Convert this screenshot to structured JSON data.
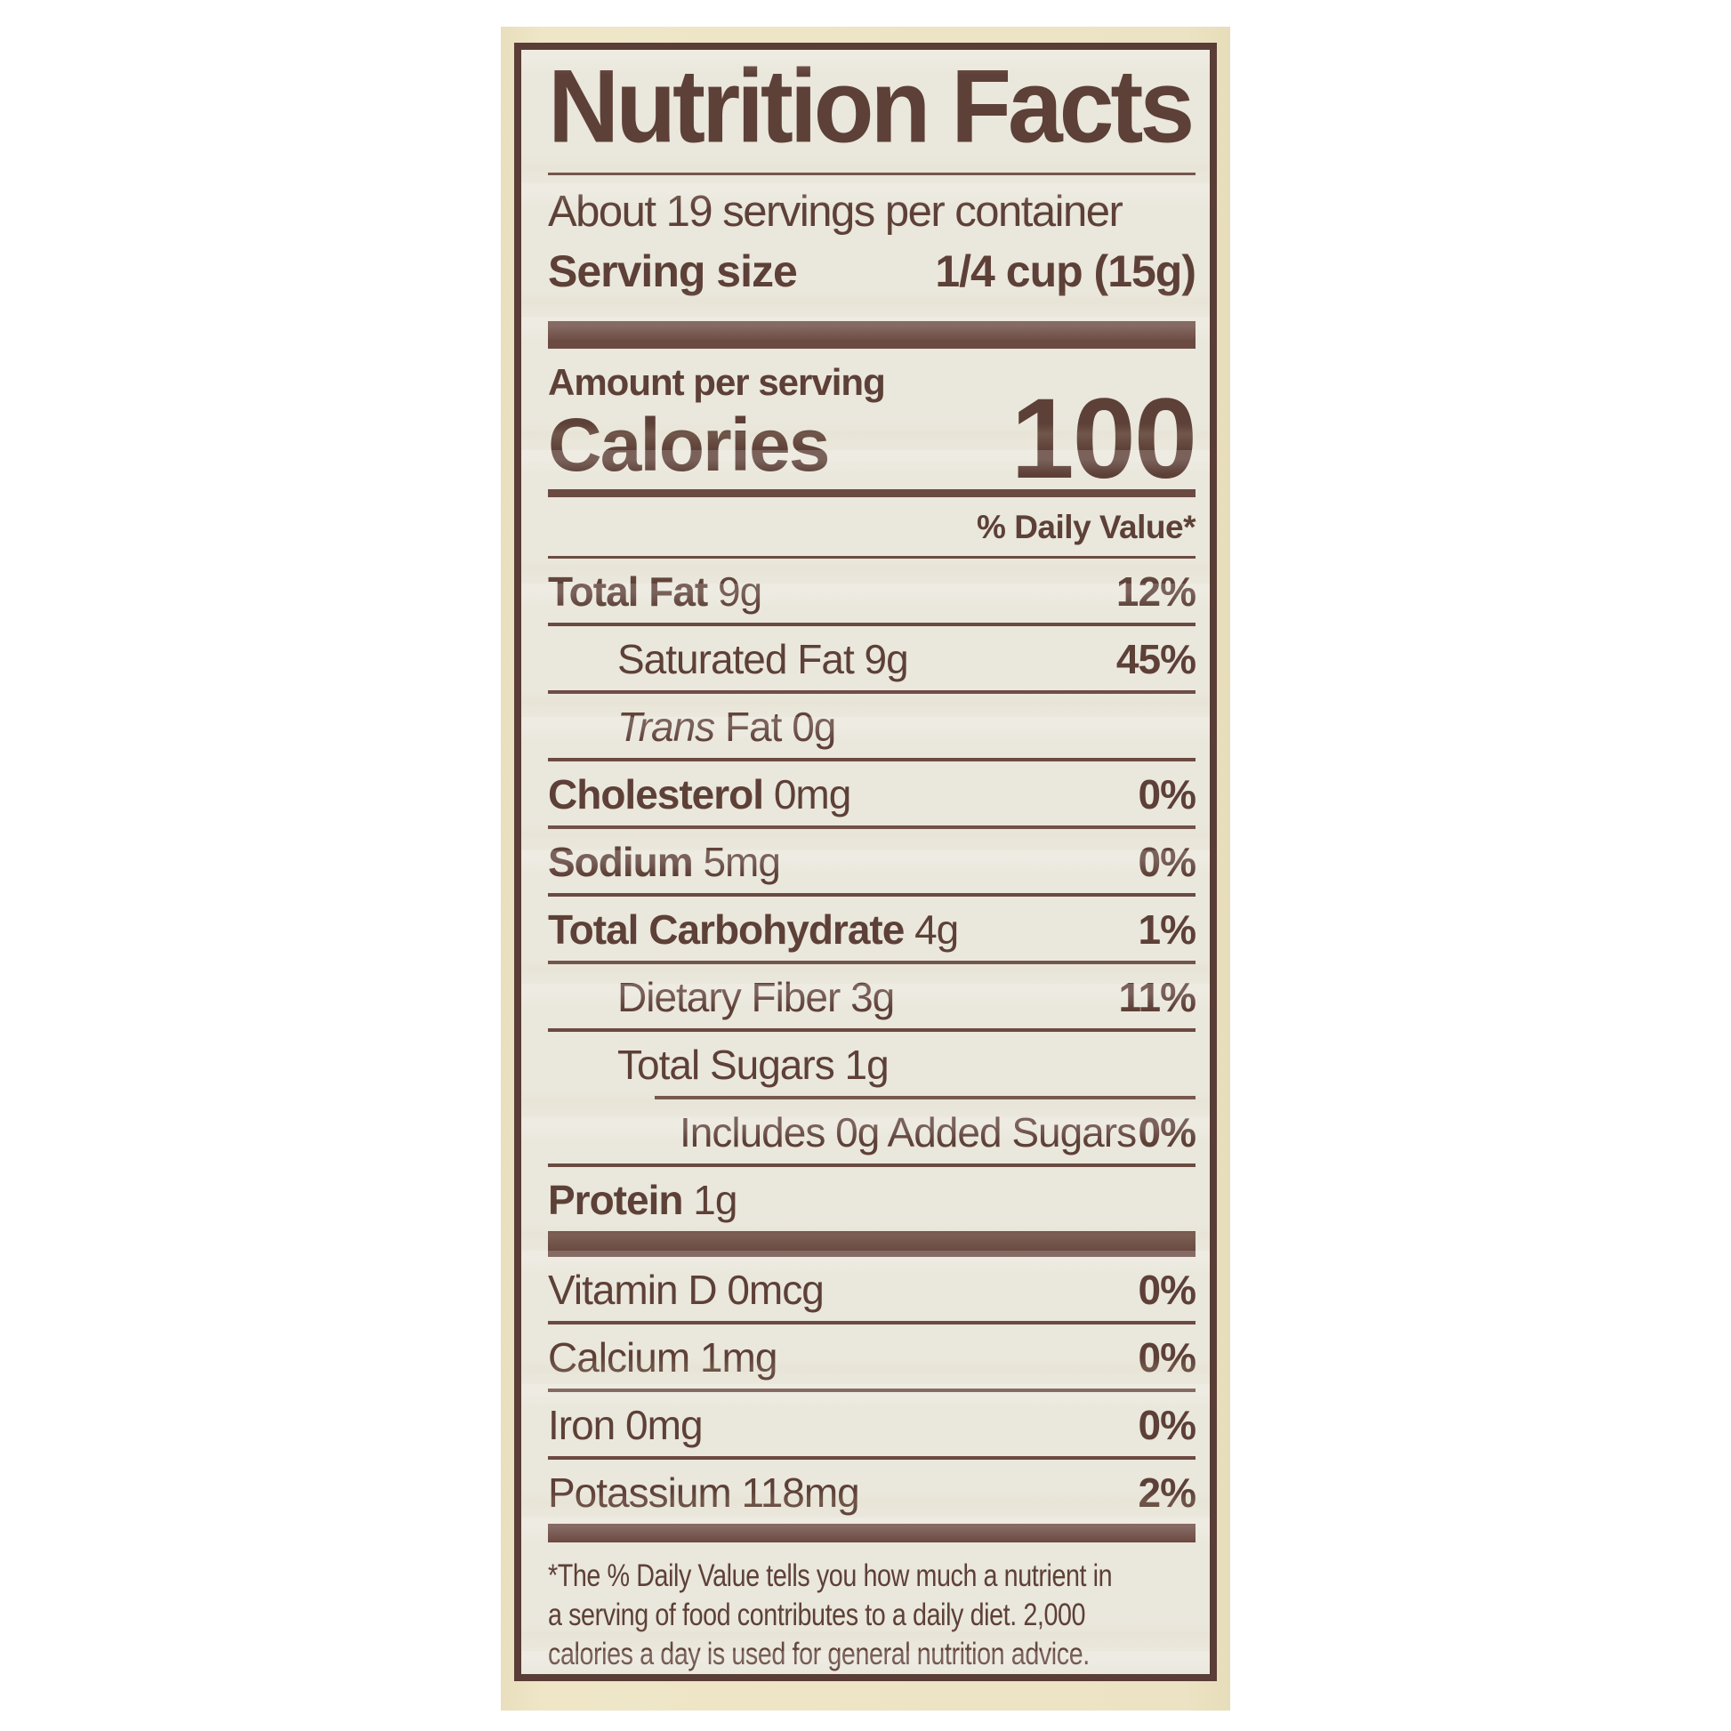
{
  "colors": {
    "page_background": "#ffffff",
    "package_background": "#ece3c4",
    "label_background": "#eae7dc",
    "ink": "#5d4037",
    "bar": "#6b4a42"
  },
  "label": {
    "title": "Nutrition Facts",
    "servings_per_container": "About 19 servings per container",
    "serving_size_label": "Serving size",
    "serving_size_value": "1/4 cup (15g)",
    "amount_per_serving_label": "Amount per serving",
    "calories_label": "Calories",
    "calories_value": "100",
    "daily_value_header": "% Daily Value*",
    "nutrients": [
      {
        "name": "Total Fat",
        "amount": "9g",
        "dv": "12%",
        "indent": 0,
        "bold": true,
        "rule_after": "full"
      },
      {
        "name": "Saturated Fat",
        "amount": "9g",
        "dv": "45%",
        "indent": 1,
        "bold": false,
        "rule_after": "full"
      },
      {
        "italic": "Trans",
        "name": " Fat",
        "amount": "0g",
        "dv": "",
        "indent": 1,
        "bold": false,
        "rule_after": "full"
      },
      {
        "name": "Cholesterol",
        "amount": "0mg",
        "dv": "0%",
        "indent": 0,
        "bold": true,
        "rule_after": "full"
      },
      {
        "name": "Sodium",
        "amount": "5mg",
        "dv": "0%",
        "indent": 0,
        "bold": true,
        "rule_after": "full"
      },
      {
        "name": "Total Carbohydrate",
        "amount": "4g",
        "dv": "1%",
        "indent": 0,
        "bold": true,
        "rule_after": "full"
      },
      {
        "name": "Dietary Fiber",
        "amount": "3g",
        "dv": "11%",
        "indent": 1,
        "bold": false,
        "rule_after": "full"
      },
      {
        "name": "Total Sugars",
        "amount": "1g",
        "dv": "",
        "indent": 1,
        "bold": false,
        "rule_after": "indent"
      },
      {
        "name": "Includes 0g Added Sugars",
        "amount": "",
        "dv": "0%",
        "indent": 2,
        "bold": false,
        "rule_after": "full"
      },
      {
        "name": "Protein",
        "amount": "1g",
        "dv": "",
        "indent": 0,
        "bold": true,
        "rule_after": "none"
      }
    ],
    "vitamins": [
      {
        "name": "Vitamin D",
        "amount": "0mcg",
        "dv": "0%",
        "rule_after": "full"
      },
      {
        "name": "Calcium",
        "amount": "1mg",
        "dv": "0%",
        "rule_after": "full"
      },
      {
        "name": "Iron",
        "amount": "0mg",
        "dv": "0%",
        "rule_after": "full"
      },
      {
        "name": "Potassium",
        "amount": "118mg",
        "dv": "2%",
        "rule_after": "none"
      }
    ],
    "footnote_lines": [
      "*The % Daily Value tells you how much a nutrient in",
      "a serving of food contributes to a daily diet. 2,000",
      "calories a day is used for general nutrition advice."
    ]
  }
}
